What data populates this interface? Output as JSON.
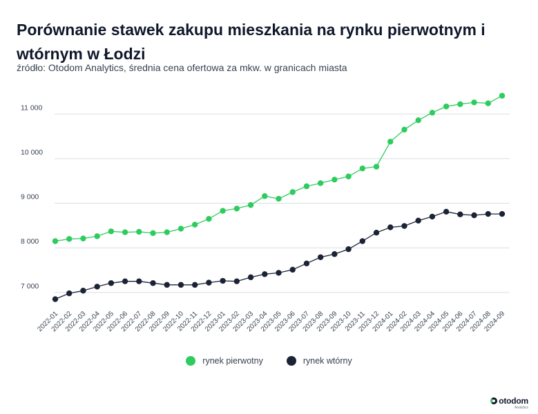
{
  "header": {
    "title": "Porównanie stawek zakupu mieszkania na rynku pierwotnym i wtórnym w Łodzi",
    "subtitle": "źródło: Otodom Analytics, średnia cena ofertowa za mkw. w granicach miasta"
  },
  "brand": {
    "logo_text": "otodom",
    "logo_sub": "Analytics"
  },
  "colors": {
    "primary_series": "#2ecc5e",
    "secondary_series": "#1b2336",
    "grid": "#d9dde3",
    "tick_text": "#374151"
  },
  "chart_data": {
    "type": "line",
    "categories": [
      "2022-01",
      "2022-02",
      "2022-03",
      "2022-04",
      "2022-05",
      "2022-06",
      "2022-07",
      "2022-08",
      "2022-09",
      "2022-10",
      "2022-11",
      "2022-12",
      "2023-01",
      "2023-02",
      "2023-03",
      "2023-04",
      "2023-05",
      "2023-06",
      "2023-07",
      "2023-08",
      "2023-09",
      "2023-10",
      "2023-11",
      "2023-12",
      "2024-01",
      "2024-02",
      "2024-03",
      "2024-04",
      "2024-05",
      "2024-06",
      "2024-07",
      "2024-08",
      "2024-09"
    ],
    "series": [
      {
        "name": "rynek pierwotny",
        "color": "#2ecc5e",
        "values": [
          8150,
          8200,
          8210,
          8260,
          8370,
          8350,
          8360,
          8330,
          8350,
          8430,
          8520,
          8650,
          8830,
          8880,
          8960,
          9160,
          9100,
          9250,
          9380,
          9450,
          9530,
          9600,
          9780,
          9820,
          10380,
          10650,
          10860,
          11030,
          11170,
          11220,
          11260,
          11240,
          11410
        ]
      },
      {
        "name": "rynek wtórny",
        "color": "#1b2336",
        "values": [
          6850,
          6980,
          7040,
          7130,
          7210,
          7250,
          7250,
          7210,
          7170,
          7170,
          7170,
          7220,
          7260,
          7250,
          7340,
          7410,
          7440,
          7510,
          7650,
          7790,
          7860,
          7970,
          8150,
          8340,
          8460,
          8490,
          8610,
          8700,
          8810,
          8750,
          8730,
          8760,
          8760
        ]
      }
    ],
    "yticks": [
      7000,
      8000,
      9000,
      10000,
      11000
    ],
    "ytick_labels": [
      "7 000",
      "8 000",
      "9 000",
      "10 000",
      "11 000"
    ],
    "ylim": [
      6750,
      11700
    ],
    "grid": "horizontal",
    "legend_position": "bottom-center"
  }
}
